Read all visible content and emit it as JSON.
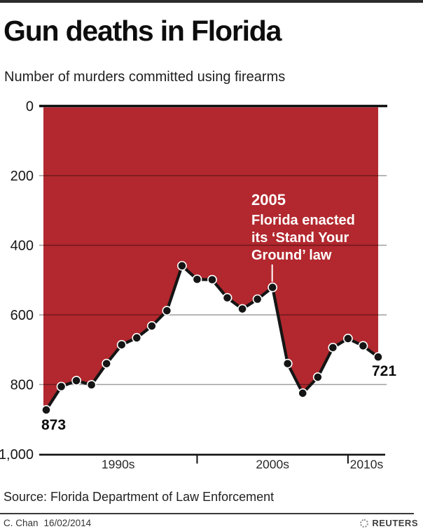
{
  "header": {
    "title": "Gun deaths in Florida",
    "subtitle": "Number of murders committed using firearms"
  },
  "chart_data": {
    "type": "area",
    "title": "Gun deaths in Florida",
    "subtitle": "Number of murders committed using firearms",
    "xlabel": "",
    "ylabel": "",
    "y_axis_inverted": true,
    "ylim": [
      0,
      1000
    ],
    "grid": true,
    "x": [
      1990,
      1991,
      1992,
      1993,
      1994,
      1995,
      1996,
      1997,
      1998,
      1999,
      2000,
      2001,
      2002,
      2003,
      2004,
      2005,
      2006,
      2007,
      2008,
      2009,
      2010,
      2011,
      2012
    ],
    "values": [
      873,
      806,
      789,
      801,
      740,
      686,
      666,
      632,
      588,
      459,
      498,
      499,
      551,
      583,
      555,
      521,
      740,
      825,
      779,
      694,
      668,
      689,
      721
    ],
    "y_tick_values": [
      0,
      200,
      400,
      600,
      800,
      1000
    ],
    "y_tick_labels": [
      "0",
      "200",
      "400",
      "600",
      "800",
      "1,000"
    ],
    "x_ticks": [
      "1990s",
      "2000s",
      "2010s"
    ],
    "x_tick_years": [
      2000,
      2010
    ],
    "start_label": "873",
    "end_label": "721",
    "annotation": {
      "title": "2005",
      "lines": [
        "Florida enacted",
        "its ‘Stand Your",
        "Ground’ law"
      ],
      "target_year": 2005
    },
    "colors": {
      "area": "#b2282e",
      "line": "#151515",
      "marker": "#151515",
      "marker_ring": "#ffffff",
      "annotation_text": "#ffffff"
    }
  },
  "footer": {
    "source": "Source: Florida Department of Law Enforcement",
    "credit": "C. Chan",
    "date": "16/02/2014",
    "brand": "REUTERS"
  }
}
